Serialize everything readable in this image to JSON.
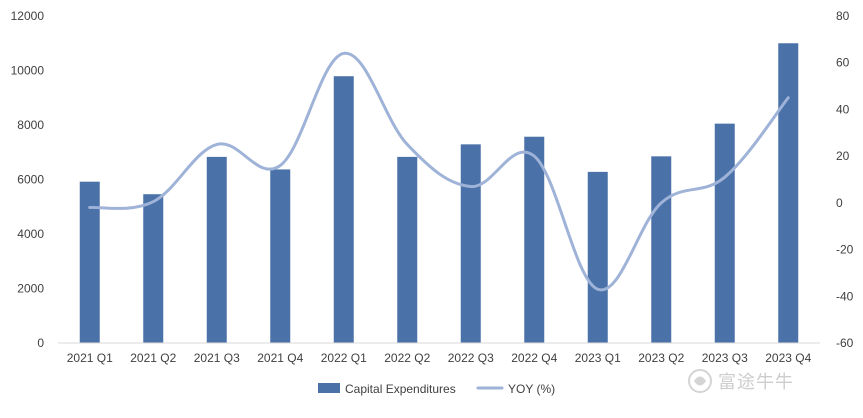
{
  "chart_data": {
    "type": "bar",
    "categories": [
      "2021 Q1",
      "2021 Q2",
      "2021 Q3",
      "2021 Q4",
      "2022 Q1",
      "2022 Q2",
      "2022 Q3",
      "2022 Q4",
      "2023 Q1",
      "2023 Q2",
      "2023 Q3",
      "2023 Q4"
    ],
    "series": [
      {
        "name": "Capital Expenditures",
        "type": "bar",
        "axis": "left",
        "color": "#4a72a8",
        "values": [
          5920,
          5460,
          6830,
          6370,
          9790,
          6830,
          7290,
          7570,
          6280,
          6850,
          8050,
          11000
        ]
      },
      {
        "name": "YOY (%)",
        "type": "line",
        "axis": "right",
        "color": "#9fb3d8",
        "values": [
          -2,
          0.5,
          25,
          16,
          64,
          25,
          7,
          20,
          -37,
          0,
          11,
          45
        ]
      }
    ],
    "y_left": {
      "min": 0,
      "max": 12000,
      "ticks": [
        "0",
        "2000",
        "4000",
        "6000",
        "8000",
        "10000",
        "12000"
      ]
    },
    "y_right": {
      "min": -60,
      "max": 80,
      "ticks": [
        "-60",
        "-40",
        "-20",
        "0",
        "20",
        "40",
        "60",
        "80"
      ]
    },
    "grid": false,
    "legend": {
      "placement": "bottom",
      "items": [
        "Capital Expenditures",
        "YOY (%)"
      ]
    }
  },
  "watermark": {
    "text": "富途牛牛"
  }
}
